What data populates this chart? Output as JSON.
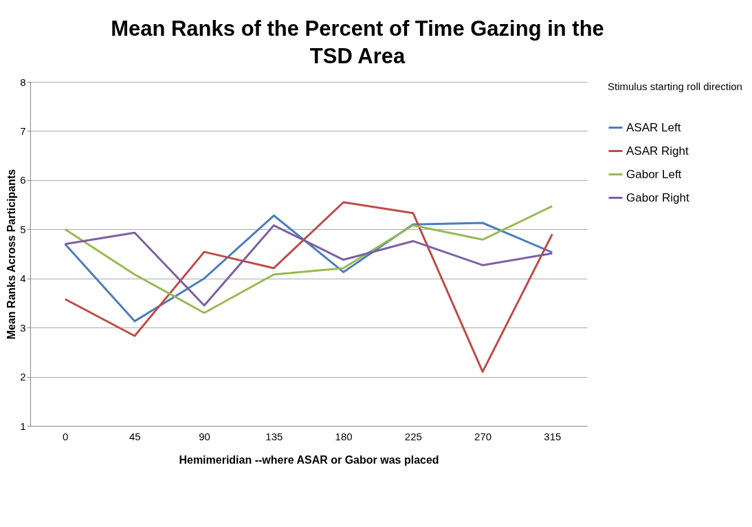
{
  "chart_data": {
    "type": "line",
    "title": "Mean Ranks of the Percent of Time Gazing in the TSD Area",
    "xlabel": "Hemimeridian --where ASAR or Gabor was placed",
    "ylabel": "Mean Ranks Across Participants",
    "legend_title": "Stimulus starting roll direction",
    "categories": [
      "0",
      "45",
      "90",
      "135",
      "180",
      "225",
      "270",
      "315"
    ],
    "series": [
      {
        "name": "ASAR Left",
        "color": "#4a7ebb",
        "values": [
          4.7,
          3.13,
          4.0,
          5.28,
          4.13,
          5.1,
          5.13,
          4.53
        ]
      },
      {
        "name": "ASAR Right",
        "color": "#be4b48",
        "values": [
          3.58,
          2.83,
          4.54,
          4.21,
          5.55,
          5.33,
          2.1,
          4.9
        ]
      },
      {
        "name": "Gabor Left",
        "color": "#98b954",
        "values": [
          5.0,
          4.08,
          3.3,
          4.08,
          4.21,
          5.08,
          4.79,
          5.47
        ]
      },
      {
        "name": "Gabor Right",
        "color": "#7d60a0",
        "values": [
          4.7,
          4.93,
          3.45,
          5.08,
          4.38,
          4.76,
          4.27,
          4.51
        ]
      }
    ],
    "ylim": [
      1,
      8
    ],
    "yticks": [
      1,
      2,
      3,
      4,
      5,
      6,
      7,
      8
    ],
    "grid": "y",
    "legend": "right",
    "marker": "none",
    "line_style": "solid"
  }
}
